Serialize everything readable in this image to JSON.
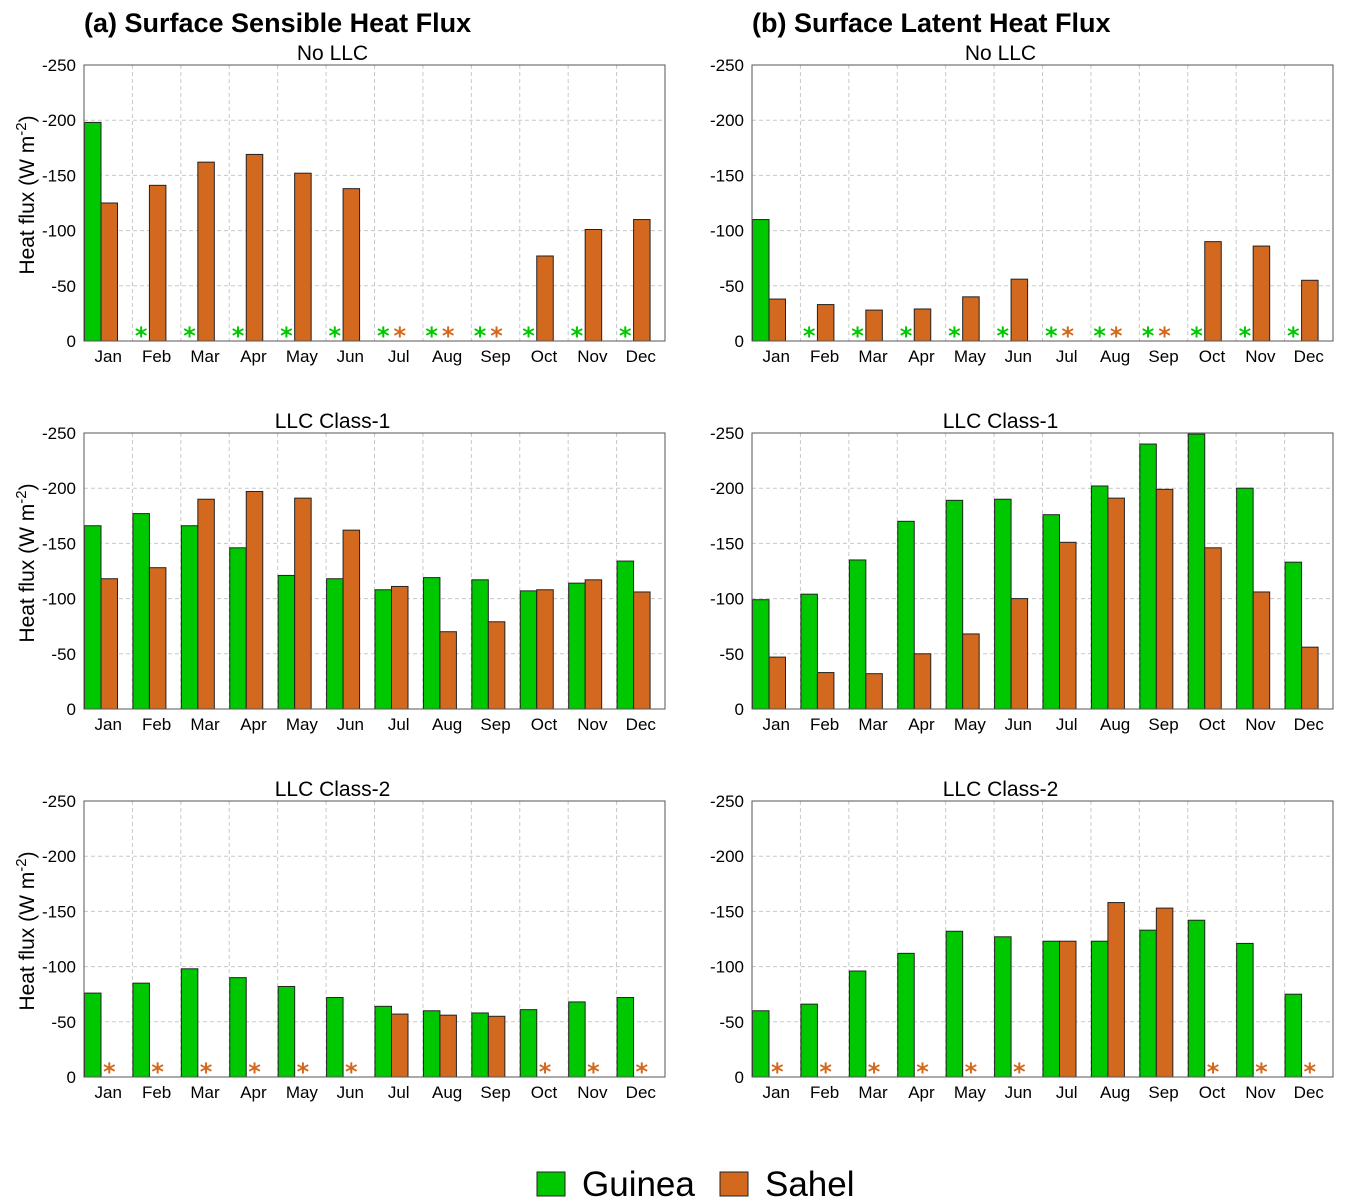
{
  "figure": {
    "column_titles": [
      "(a) Surface Sensible Heat Flux",
      "(b) Surface Latent Heat Flux"
    ],
    "ylabel": "Heat flux (W m⁻²)",
    "ylabel_parts": {
      "main": "Heat flux  (W m",
      "sup": "-2",
      "end": ")"
    },
    "legend": [
      {
        "name": "Guinea",
        "color": "#00c800"
      },
      {
        "name": "Sahel",
        "color": "#d2691e"
      }
    ]
  },
  "chart_data": [
    {
      "type": "bar",
      "panel": "sensible",
      "title": "No LLC",
      "categories": [
        "Jan",
        "Feb",
        "Mar",
        "Apr",
        "May",
        "Jun",
        "Jul",
        "Aug",
        "Sep",
        "Oct",
        "Nov",
        "Dec"
      ],
      "ylim": [
        0,
        -250
      ],
      "yticks": [
        "0",
        "-50",
        "-100",
        "-150",
        "-200",
        "-250"
      ],
      "grid": true,
      "series": [
        {
          "name": "Guinea",
          "color": "#00c800",
          "values": [
            -198,
            null,
            null,
            null,
            null,
            null,
            null,
            null,
            null,
            null,
            null,
            null
          ]
        },
        {
          "name": "Sahel",
          "color": "#d2691e",
          "values": [
            -125,
            -141,
            -162,
            -169,
            -152,
            -138,
            null,
            null,
            null,
            -77,
            -101,
            -110
          ]
        }
      ]
    },
    {
      "type": "bar",
      "panel": "latent",
      "title": "No LLC",
      "categories": [
        "Jan",
        "Feb",
        "Mar",
        "Apr",
        "May",
        "Jun",
        "Jul",
        "Aug",
        "Sep",
        "Oct",
        "Nov",
        "Dec"
      ],
      "ylim": [
        0,
        -250
      ],
      "yticks": [
        "0",
        "-50",
        "-100",
        "-150",
        "-200",
        "-250"
      ],
      "grid": true,
      "series": [
        {
          "name": "Guinea",
          "color": "#00c800",
          "values": [
            -110,
            null,
            null,
            null,
            null,
            null,
            null,
            null,
            null,
            null,
            null,
            null
          ]
        },
        {
          "name": "Sahel",
          "color": "#d2691e",
          "values": [
            -38,
            -33,
            -28,
            -29,
            -40,
            -56,
            null,
            null,
            null,
            -90,
            -86,
            -55
          ]
        }
      ]
    },
    {
      "type": "bar",
      "panel": "sensible",
      "title": "LLC Class-1",
      "categories": [
        "Jan",
        "Feb",
        "Mar",
        "Apr",
        "May",
        "Jun",
        "Jul",
        "Aug",
        "Sep",
        "Oct",
        "Nov",
        "Dec"
      ],
      "ylim": [
        0,
        -250
      ],
      "yticks": [
        "0",
        "-50",
        "-100",
        "-150",
        "-200",
        "-250"
      ],
      "grid": true,
      "series": [
        {
          "name": "Guinea",
          "color": "#00c800",
          "values": [
            -166,
            -177,
            -166,
            -146,
            -121,
            -118,
            -108,
            -119,
            -117,
            -107,
            -114,
            -134
          ]
        },
        {
          "name": "Sahel",
          "color": "#d2691e",
          "values": [
            -118,
            -128,
            -190,
            -197,
            -191,
            -162,
            -111,
            -70,
            -79,
            -108,
            -117,
            -106
          ]
        }
      ]
    },
    {
      "type": "bar",
      "panel": "latent",
      "title": "LLC Class-1",
      "categories": [
        "Jan",
        "Feb",
        "Mar",
        "Apr",
        "May",
        "Jun",
        "Jul",
        "Aug",
        "Sep",
        "Oct",
        "Nov",
        "Dec"
      ],
      "ylim": [
        0,
        -250
      ],
      "yticks": [
        "0",
        "-50",
        "-100",
        "-150",
        "-200",
        "-250"
      ],
      "grid": true,
      "series": [
        {
          "name": "Guinea",
          "color": "#00c800",
          "values": [
            -99,
            -104,
            -135,
            -170,
            -189,
            -190,
            -176,
            -202,
            -240,
            -249,
            -200,
            -133
          ]
        },
        {
          "name": "Sahel",
          "color": "#d2691e",
          "values": [
            -47,
            -33,
            -32,
            -50,
            -68,
            -100,
            -151,
            -191,
            -199,
            -146,
            -106,
            -56
          ]
        }
      ]
    },
    {
      "type": "bar",
      "panel": "sensible",
      "title": "LLC Class-2",
      "categories": [
        "Jan",
        "Feb",
        "Mar",
        "Apr",
        "May",
        "Jun",
        "Jul",
        "Aug",
        "Sep",
        "Oct",
        "Nov",
        "Dec"
      ],
      "ylim": [
        0,
        -250
      ],
      "yticks": [
        "0",
        "-50",
        "-100",
        "-150",
        "-200",
        "-250"
      ],
      "grid": true,
      "series": [
        {
          "name": "Guinea",
          "color": "#00c800",
          "values": [
            -76,
            -85,
            -98,
            -90,
            -82,
            -72,
            -64,
            -60,
            -58,
            -61,
            -68,
            -72
          ]
        },
        {
          "name": "Sahel",
          "color": "#d2691e",
          "values": [
            null,
            null,
            null,
            null,
            null,
            null,
            -57,
            -56,
            -55,
            null,
            null,
            null
          ]
        }
      ]
    },
    {
      "type": "bar",
      "panel": "latent",
      "title": "LLC Class-2",
      "categories": [
        "Jan",
        "Feb",
        "Mar",
        "Apr",
        "May",
        "Jun",
        "Jul",
        "Aug",
        "Sep",
        "Oct",
        "Nov",
        "Dec"
      ],
      "ylim": [
        0,
        -250
      ],
      "yticks": [
        "0",
        "-50",
        "-100",
        "-150",
        "-200",
        "-250"
      ],
      "grid": true,
      "series": [
        {
          "name": "Guinea",
          "color": "#00c800",
          "values": [
            -60,
            -66,
            -96,
            -112,
            -132,
            -127,
            -123,
            -123,
            -133,
            -142,
            -121,
            -75
          ]
        },
        {
          "name": "Sahel",
          "color": "#d2691e",
          "values": [
            null,
            null,
            null,
            null,
            null,
            null,
            -123,
            -158,
            -153,
            null,
            null,
            null
          ]
        }
      ]
    }
  ]
}
